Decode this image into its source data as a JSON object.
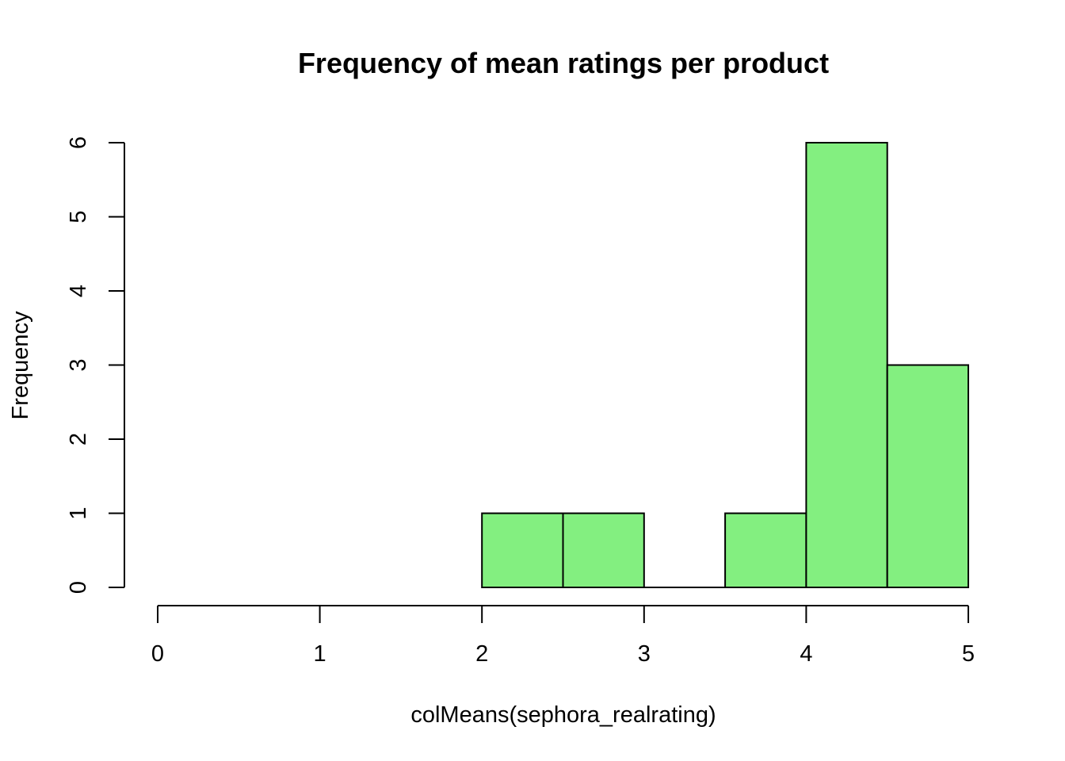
{
  "chart_data": {
    "type": "bar",
    "title": "Frequency of mean ratings per product",
    "xlabel": "colMeans(sephora_realrating)",
    "ylabel": "Frequency",
    "bar_color": "#83ef80",
    "bins": [
      {
        "x0": 2.0,
        "x1": 2.5,
        "count": 1
      },
      {
        "x0": 2.5,
        "x1": 3.0,
        "count": 1
      },
      {
        "x0": 3.0,
        "x1": 3.5,
        "count": 0
      },
      {
        "x0": 3.5,
        "x1": 4.0,
        "count": 1
      },
      {
        "x0": 4.0,
        "x1": 4.5,
        "count": 6
      },
      {
        "x0": 4.5,
        "x1": 5.0,
        "count": 3
      }
    ],
    "xlim": [
      0,
      5
    ],
    "ylim": [
      0,
      6
    ],
    "xticks": [
      "0",
      "1",
      "2",
      "3",
      "4",
      "5"
    ],
    "yticks": [
      "0",
      "1",
      "2",
      "3",
      "4",
      "5",
      "6"
    ],
    "grid": false,
    "legend": "none"
  }
}
